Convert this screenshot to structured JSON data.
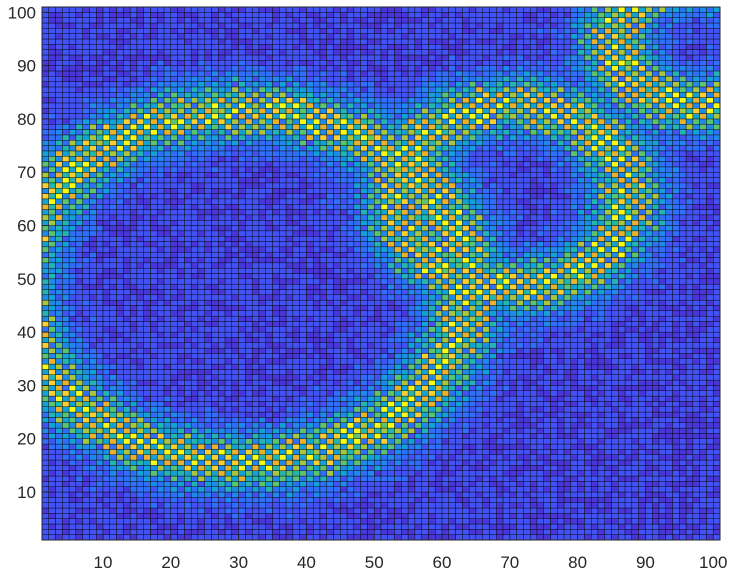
{
  "chart_data": {
    "type": "heatmap",
    "title": "",
    "xlabel": "",
    "ylabel": "",
    "grid_size": [
      100,
      100
    ],
    "xlim": [
      1,
      101
    ],
    "ylim": [
      1,
      101
    ],
    "x_ticks": [
      10,
      20,
      30,
      40,
      50,
      60,
      70,
      80,
      90,
      100
    ],
    "y_ticks": [
      10,
      20,
      30,
      40,
      50,
      60,
      70,
      80,
      90,
      100
    ],
    "x_tick_labels": [
      "10",
      "20",
      "30",
      "40",
      "50",
      "60",
      "70",
      "80",
      "90",
      "100"
    ],
    "y_tick_labels": [
      "10",
      "20",
      "30",
      "40",
      "50",
      "60",
      "70",
      "80",
      "90",
      "100"
    ],
    "value_range": [
      0,
      1
    ],
    "colormap": [
      "#3e26a8",
      "#4836d8",
      "#4352f4",
      "#2f6ffa",
      "#1f8ae9",
      "#13a2d6",
      "#23b6b0",
      "#5cc36e",
      "#a9c63f",
      "#eab22a",
      "#fcce2e",
      "#f9fb14"
    ],
    "cell_edge_color": "#000000",
    "ring_features": [
      {
        "shape": "ring",
        "center": [
          30,
          48
        ],
        "radius": 33,
        "note": "large bright ring"
      },
      {
        "shape": "ring",
        "center": [
          70,
          65
        ],
        "radius": 17,
        "note": "inner ring"
      },
      {
        "shape": "ring",
        "center": [
          97,
          94
        ],
        "radius": 12,
        "note": "corner arc"
      }
    ]
  }
}
